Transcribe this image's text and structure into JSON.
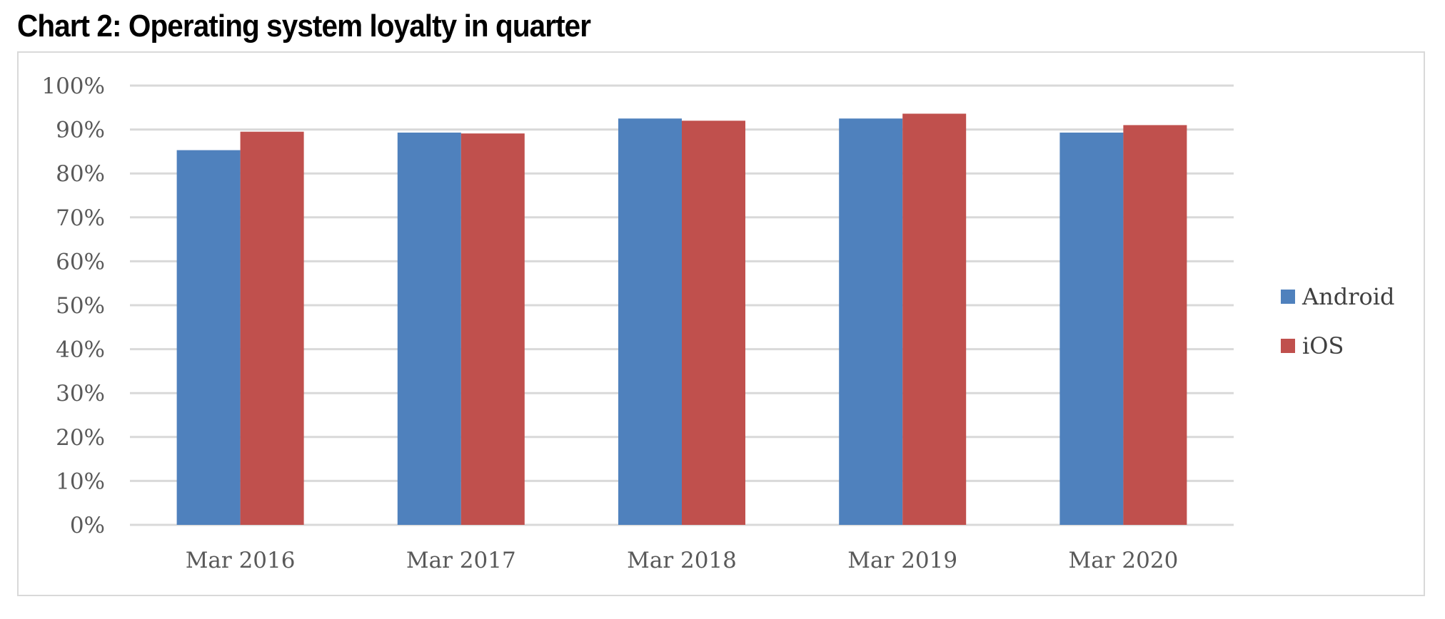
{
  "chart_data": {
    "type": "bar",
    "title": "Chart 2: Operating system loyalty in quarter",
    "categories": [
      "Mar 2016",
      "Mar 2017",
      "Mar 2018",
      "Mar 2019",
      "Mar 2020"
    ],
    "series": [
      {
        "name": "Android",
        "color": "#4F81BD",
        "values": [
          85.3,
          89.3,
          92.5,
          92.5,
          89.3
        ]
      },
      {
        "name": "iOS",
        "color": "#C0504D",
        "values": [
          89.5,
          89.1,
          92.0,
          93.6,
          91.0
        ]
      }
    ],
    "yticks": [
      "0%",
      "10%",
      "20%",
      "30%",
      "40%",
      "50%",
      "60%",
      "70%",
      "80%",
      "90%",
      "100%"
    ],
    "ylim": [
      0,
      100
    ],
    "grid": true,
    "legend_position": "right",
    "xlabel": "",
    "ylabel": ""
  }
}
